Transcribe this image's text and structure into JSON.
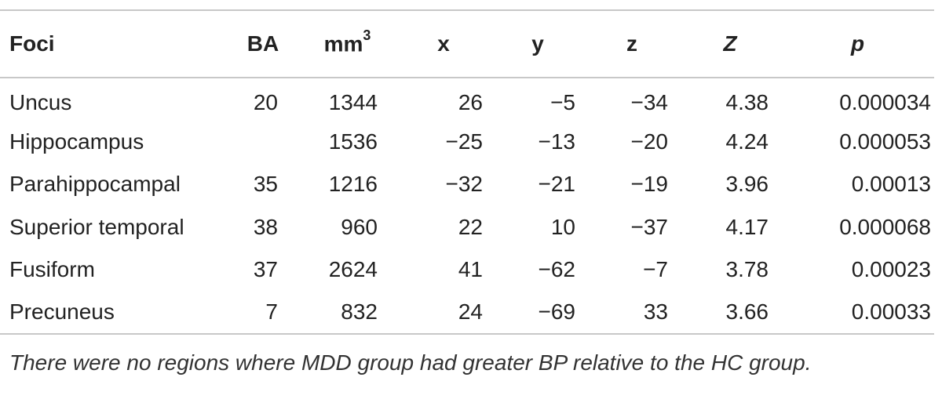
{
  "table": {
    "headers": {
      "foci": "Foci",
      "ba": "BA",
      "mm_base": "mm",
      "mm_sup": "3",
      "x": "x",
      "y": "y",
      "z": "z",
      "Z": "Z",
      "p": "p"
    },
    "rows": [
      {
        "foci": "Uncus",
        "ba": "20",
        "mm3": "1344",
        "x": "26",
        "y": "−5",
        "z": "−34",
        "Z": "4.38",
        "p": "0.000034"
      },
      {
        "foci": "Hippocampus",
        "ba": "",
        "mm3": "1536",
        "x": "−25",
        "y": "−13",
        "z": "−20",
        "Z": "4.24",
        "p": "0.000053"
      },
      {
        "foci": "Parahippocampal",
        "ba": "35",
        "mm3": "1216",
        "x": "−32",
        "y": "−21",
        "z": "−19",
        "Z": "3.96",
        "p": "0.00013"
      },
      {
        "foci": "Superior temporal",
        "ba": "38",
        "mm3": "960",
        "x": "22",
        "y": "10",
        "z": "−37",
        "Z": "4.17",
        "p": "0.000068"
      },
      {
        "foci": "Fusiform",
        "ba": "37",
        "mm3": "2624",
        "x": "41",
        "y": "−62",
        "z": "−7",
        "Z": "3.78",
        "p": "0.00023"
      },
      {
        "foci": "Precuneus",
        "ba": "7",
        "mm3": "832",
        "x": "24",
        "y": "−69",
        "z": "33",
        "Z": "3.66",
        "p": "0.00033"
      }
    ],
    "footnote": "There were no regions where MDD group had greater BP relative to the HC group."
  }
}
